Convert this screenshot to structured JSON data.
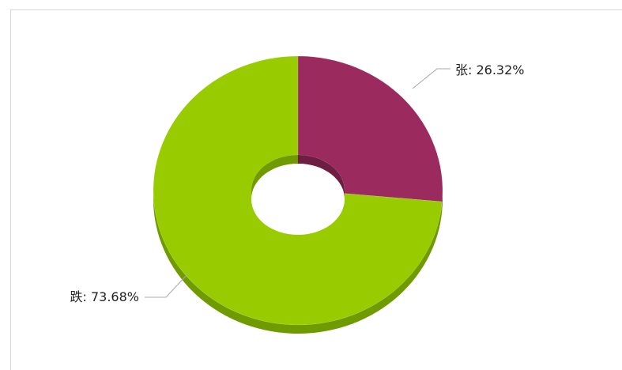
{
  "chart_data": {
    "type": "pie",
    "style": "3d-donut",
    "legend": "none",
    "categories": [
      "张",
      "跌"
    ],
    "values": [
      26.32,
      73.68
    ],
    "unit": "%",
    "colors": [
      "#9b2b5f",
      "#99cc00"
    ],
    "side_colors": [
      "#6e1e43",
      "#6f9a00"
    ],
    "data_labels": [
      "张: 26.32%",
      "跌: 73.68%"
    ],
    "start_angle_deg": -90,
    "direction": "clockwise"
  }
}
